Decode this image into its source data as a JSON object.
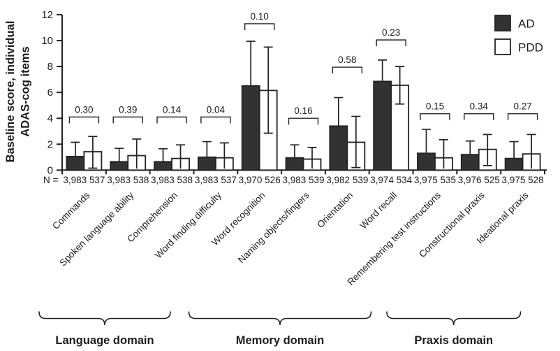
{
  "chart_data": {
    "type": "bar",
    "title": "",
    "ylabel": [
      "Baseline score, individual",
      "ADAS-cog items"
    ],
    "ylim": [
      0,
      12
    ],
    "yticks": [
      0,
      2,
      4,
      6,
      8,
      10,
      12
    ],
    "grid": false,
    "legend_position": "top-right",
    "n_prefix": "N =",
    "legend": [
      {
        "label": "AD",
        "fill": "#323232"
      },
      {
        "label": "PDD",
        "fill": "#ffffff"
      }
    ],
    "colors": {
      "ad_fill": "#323232",
      "pdd_fill": "#ffffff",
      "stroke": "#222222"
    },
    "series_names": [
      "AD",
      "PDD"
    ],
    "categories": [
      {
        "label": "Commands",
        "p": "0.30",
        "n_ad": "3,983",
        "n_pdd": "537",
        "ad": {
          "value": 1.05,
          "err_hi": 2.15,
          "err_lo": null
        },
        "pdd": {
          "value": 1.42,
          "err_hi": 2.6,
          "err_lo": 0.15
        },
        "bracket_level": 4.1
      },
      {
        "label": "Spoken language ability",
        "p": "0.39",
        "n_ad": "3,983",
        "n_pdd": "538",
        "ad": {
          "value": 0.65,
          "err_hi": 1.68,
          "err_lo": null
        },
        "pdd": {
          "value": 1.12,
          "err_hi": 2.4,
          "err_lo": null
        },
        "bracket_level": 4.1
      },
      {
        "label": "Comprehension",
        "p": "0.14",
        "n_ad": "3,983",
        "n_pdd": "538",
        "ad": {
          "value": 0.65,
          "err_hi": 1.65,
          "err_lo": null
        },
        "pdd": {
          "value": 0.9,
          "err_hi": 1.95,
          "err_lo": null
        },
        "bracket_level": 4.1
      },
      {
        "label": "Word finding difficulty",
        "p": "0.04",
        "n_ad": "3,983",
        "n_pdd": "537",
        "ad": {
          "value": 1.0,
          "err_hi": 2.2,
          "err_lo": null
        },
        "pdd": {
          "value": 0.95,
          "err_hi": 2.1,
          "err_lo": null
        },
        "bracket_level": 4.1
      },
      {
        "label": "Word recognition",
        "p": "0.10",
        "n_ad": "3,970",
        "n_pdd": "526",
        "ad": {
          "value": 6.5,
          "err_hi": 9.95,
          "err_lo": null
        },
        "pdd": {
          "value": 6.15,
          "err_hi": 9.5,
          "err_lo": 2.85
        },
        "bracket_level": 11.3
      },
      {
        "label": "Naming objects/fingers",
        "p": "0.16",
        "n_ad": "3,983",
        "n_pdd": "539",
        "ad": {
          "value": 0.95,
          "err_hi": 1.95,
          "err_lo": null
        },
        "pdd": {
          "value": 0.85,
          "err_hi": 1.75,
          "err_lo": null
        },
        "bracket_level": 4.0
      },
      {
        "label": "Orientation",
        "p": "0.58",
        "n_ad": "3,982",
        "n_pdd": "539",
        "ad": {
          "value": 3.4,
          "err_hi": 5.6,
          "err_lo": null
        },
        "pdd": {
          "value": 2.15,
          "err_hi": 4.15,
          "err_lo": 0.2
        },
        "bracket_level": 7.95
      },
      {
        "label": "Word recall",
        "p": "0.23",
        "n_ad": "3,974",
        "n_pdd": "534",
        "ad": {
          "value": 6.85,
          "err_hi": 8.5,
          "err_lo": null
        },
        "pdd": {
          "value": 6.55,
          "err_hi": 8.0,
          "err_lo": 5.1
        },
        "bracket_level": 10.05
      },
      {
        "label": "Remembering test instructions",
        "p": "0.15",
        "n_ad": "3,975",
        "n_pdd": "535",
        "ad": {
          "value": 1.3,
          "err_hi": 3.15,
          "err_lo": null
        },
        "pdd": {
          "value": 0.95,
          "err_hi": 2.35,
          "err_lo": null
        },
        "bracket_level": 4.35
      },
      {
        "label": "Constructional praxis",
        "p": "0.34",
        "n_ad": "3,976",
        "n_pdd": "525",
        "ad": {
          "value": 1.2,
          "err_hi": 2.25,
          "err_lo": null
        },
        "pdd": {
          "value": 1.6,
          "err_hi": 2.75,
          "err_lo": 0.35
        },
        "bracket_level": 4.35
      },
      {
        "label": "Ideational praxis",
        "p": "0.27",
        "n_ad": "3,975",
        "n_pdd": "528",
        "ad": {
          "value": 0.9,
          "err_hi": 2.2,
          "err_lo": null
        },
        "pdd": {
          "value": 1.25,
          "err_hi": 2.75,
          "err_lo": null
        },
        "bracket_level": 4.35
      }
    ],
    "domains": [
      {
        "label": "Language domain",
        "first_category": 0,
        "last_category": 3,
        "members": [
          "Commands",
          "Spoken language ability",
          "Comprehension",
          "Word finding difficulty"
        ]
      },
      {
        "label": "Memory domain",
        "first_category": 4,
        "last_category": 7,
        "members": [
          "Word recognition",
          "Naming objects/fingers",
          "Orientation",
          "Word recall"
        ]
      },
      {
        "label": "Praxis domain",
        "first_category": 8,
        "last_category": 10,
        "members": [
          "Remembering test instructions",
          "Constructional praxis",
          "Ideational praxis"
        ]
      }
    ]
  }
}
